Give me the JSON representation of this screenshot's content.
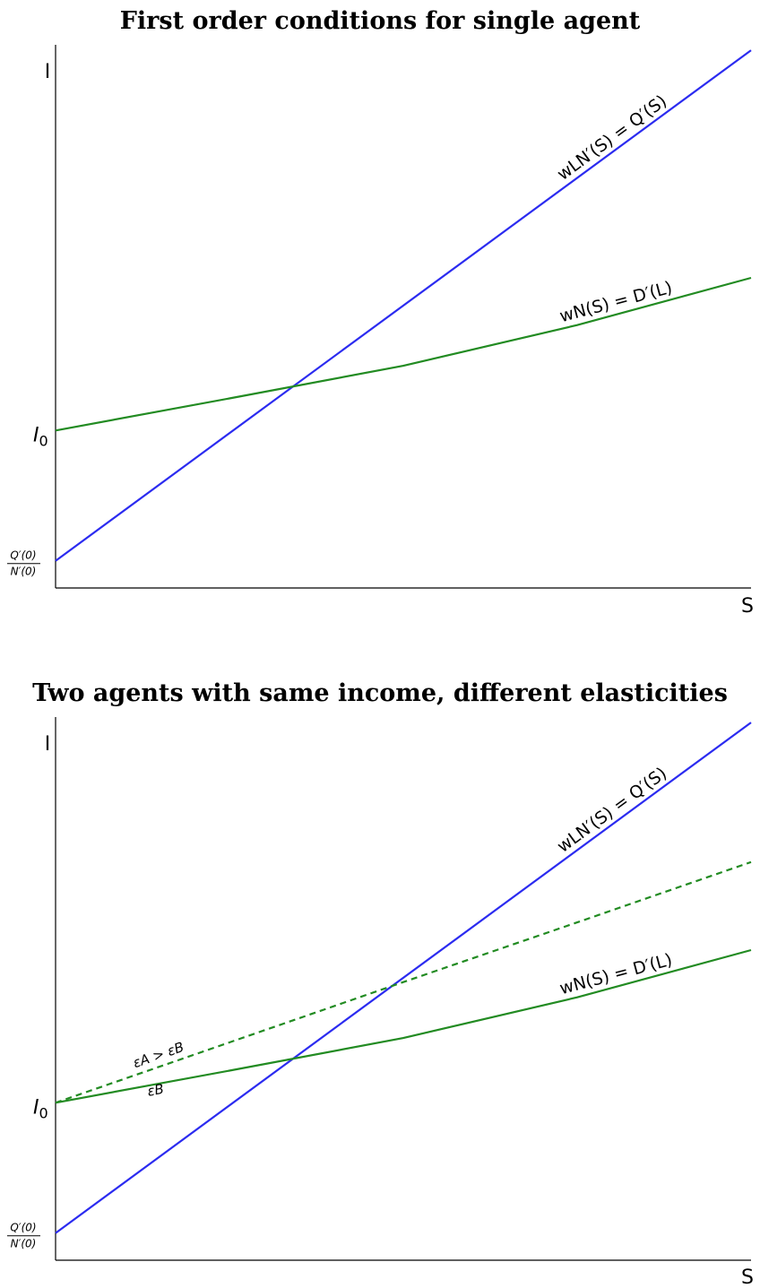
{
  "chart_data": [
    {
      "type": "line",
      "title": "First order conditions for single agent",
      "xlabel": "S",
      "ylabel": "I",
      "xlim": [
        0,
        1
      ],
      "ylim": [
        0,
        1
      ],
      "yticks": [
        {
          "name": "q-ratio",
          "value": 0.05,
          "num": "Q′(0)",
          "den": "N′(0)"
        },
        {
          "name": "i0",
          "value": 0.29,
          "text": "I",
          "sub": "0"
        }
      ],
      "series": [
        {
          "name": "wLN′(S) = Q′(S)",
          "color": "#2b2bf0",
          "style": "solid",
          "x": [
            0,
            1
          ],
          "y": [
            0.05,
            0.99
          ]
        },
        {
          "name": "wN(S) = D′(L)",
          "color": "#228b22",
          "style": "solid",
          "x": [
            0,
            0.25,
            0.5,
            0.75,
            1
          ],
          "y": [
            0.29,
            0.349,
            0.409,
            0.484,
            0.571
          ]
        }
      ],
      "annotations": []
    },
    {
      "type": "line",
      "title": "Two agents with same income, different elasticities",
      "xlabel": "S",
      "ylabel": "I",
      "xlim": [
        0,
        1
      ],
      "ylim": [
        0,
        1
      ],
      "yticks": [
        {
          "name": "q-ratio",
          "value": 0.05,
          "num": "Q′(0)",
          "den": "N′(0)"
        },
        {
          "name": "i0",
          "value": 0.29,
          "text": "I",
          "sub": "0"
        }
      ],
      "series": [
        {
          "name": "wLN′(S) = Q′(S)",
          "color": "#2b2bf0",
          "style": "solid",
          "x": [
            0,
            1
          ],
          "y": [
            0.05,
            0.99
          ]
        },
        {
          "name": "wN(S) = D′(L)",
          "color": "#228b22",
          "style": "solid",
          "x": [
            0,
            0.25,
            0.5,
            0.75,
            1
          ],
          "y": [
            0.29,
            0.349,
            0.409,
            0.484,
            0.571
          ]
        },
        {
          "name": "",
          "color": "#228b22",
          "style": "dashed",
          "x": [
            0,
            0.25,
            0.5,
            0.75,
            1
          ],
          "y": [
            0.29,
            0.401,
            0.512,
            0.622,
            0.733
          ]
        }
      ],
      "annotations": [
        {
          "text": "εA > εB",
          "x": 0.15,
          "y": 0.37
        },
        {
          "text": "εB",
          "x": 0.145,
          "y": 0.305
        }
      ]
    }
  ]
}
